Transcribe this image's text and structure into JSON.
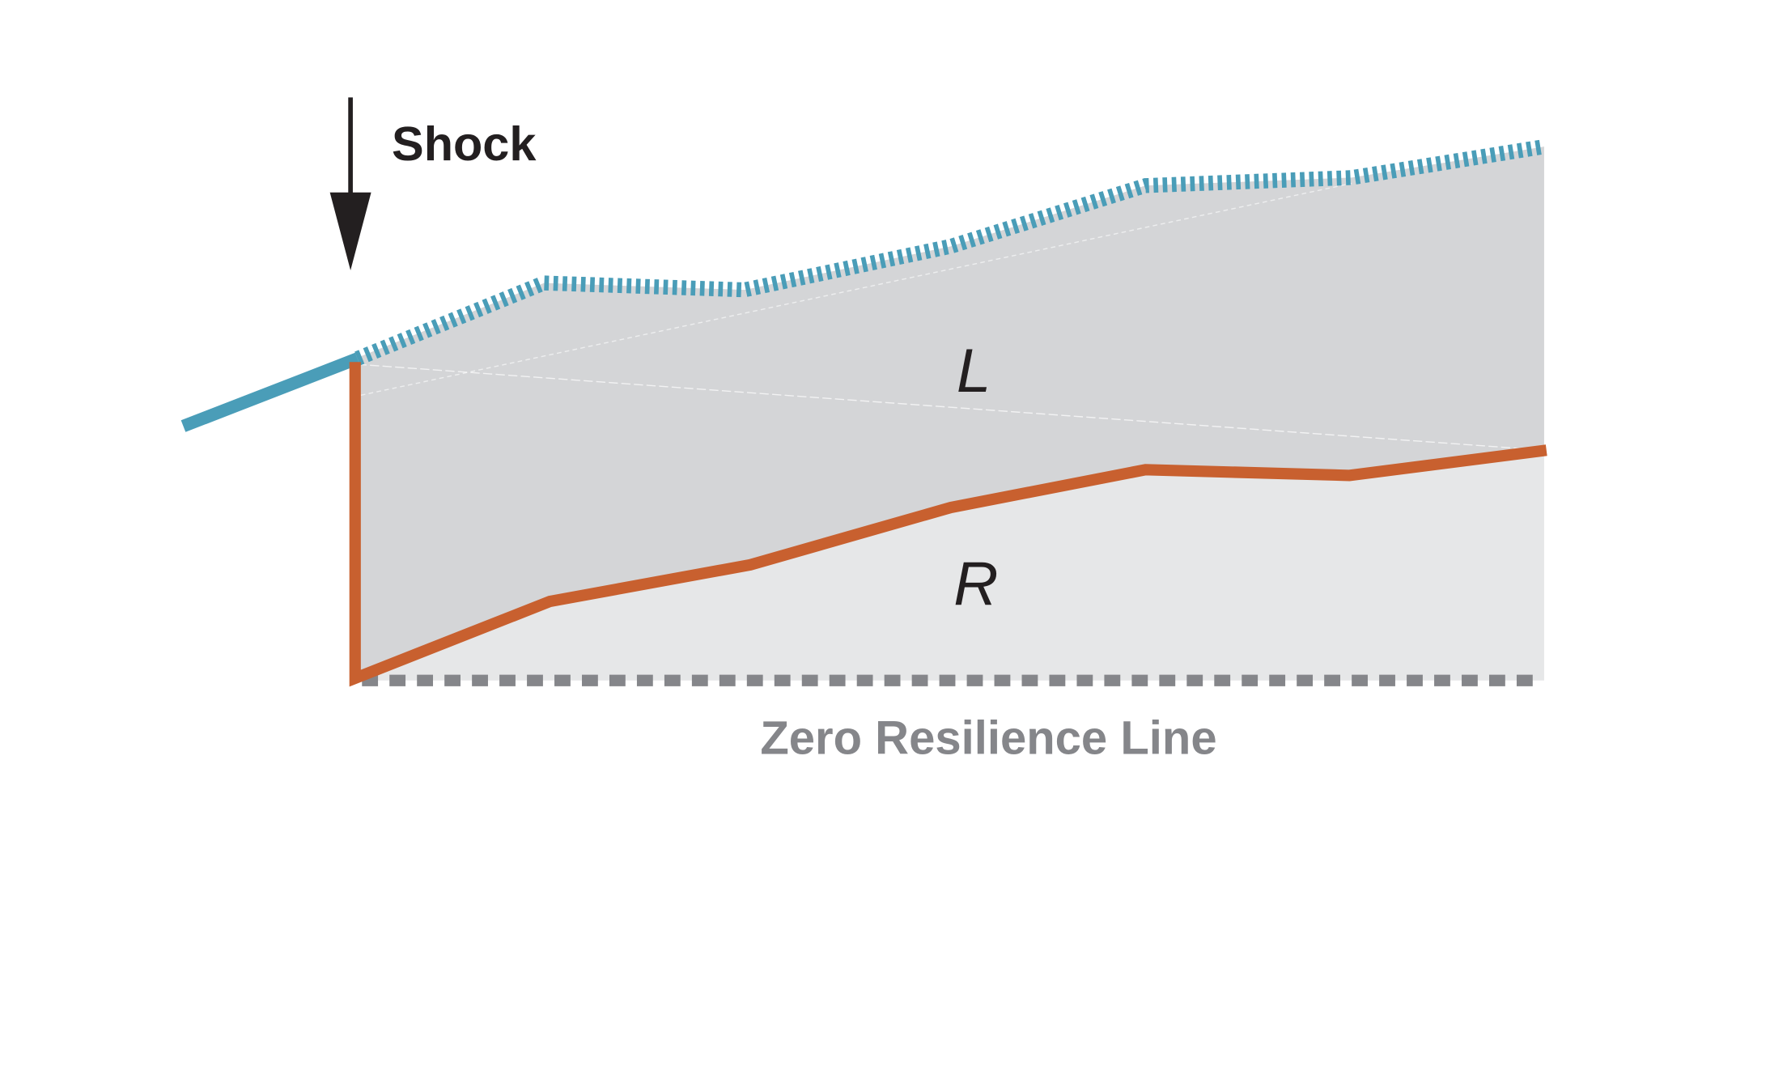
{
  "diagram": {
    "shock_label": "Shock",
    "region_upper_label": "L",
    "region_lower_label": "R",
    "zero_line_label": "Zero Resilience Line",
    "colors": {
      "pre_shock_line": "#4a9db8",
      "potential_line": "#4a9db8",
      "recovery_line": "#c8602f",
      "zero_line": "#85868a",
      "loss_area": "#d4d5d7",
      "recovered_area": "#e6e7e8",
      "arrow": "#231f20"
    }
  }
}
